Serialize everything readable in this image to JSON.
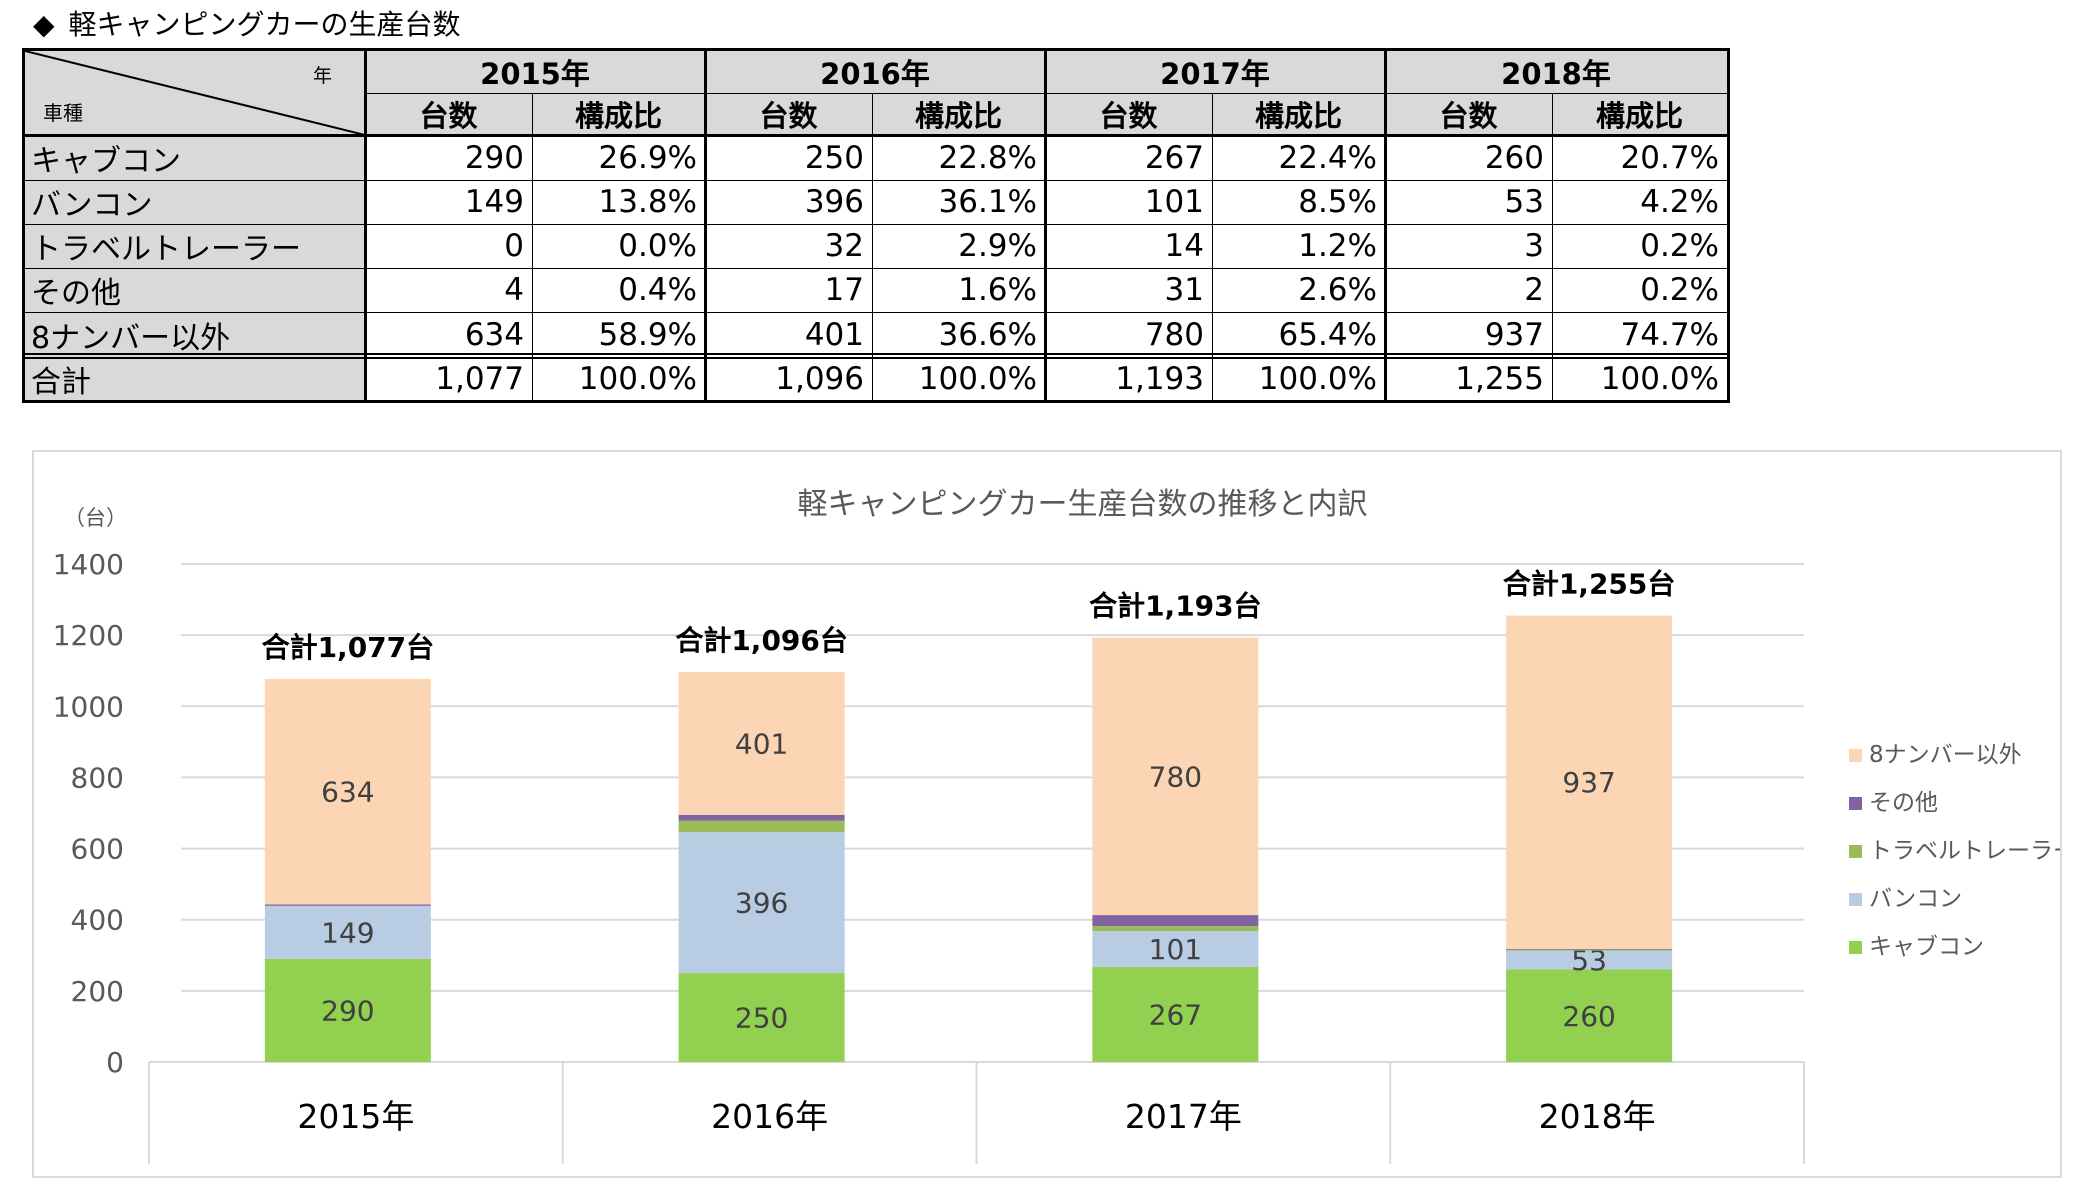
{
  "page_title": "軽キャンピングカーの生産台数",
  "title_marker": "◆",
  "table": {
    "corner_year_label": "年",
    "corner_type_label": "車種",
    "years": [
      "2015年",
      "2016年",
      "2017年",
      "2018年"
    ],
    "subheaders": [
      "台数",
      "構成比"
    ],
    "rows": [
      {
        "label": "キャブコン",
        "cells": [
          "290",
          "26.9%",
          "250",
          "22.8%",
          "267",
          "22.4%",
          "260",
          "20.7%"
        ]
      },
      {
        "label": "バンコン",
        "cells": [
          "149",
          "13.8%",
          "396",
          "36.1%",
          "101",
          "8.5%",
          "53",
          "4.2%"
        ]
      },
      {
        "label": "トラベルトレーラー",
        "cells": [
          "0",
          "0.0%",
          "32",
          "2.9%",
          "14",
          "1.2%",
          "3",
          "0.2%"
        ]
      },
      {
        "label": "その他",
        "cells": [
          "4",
          "0.4%",
          "17",
          "1.6%",
          "31",
          "2.6%",
          "2",
          "0.2%"
        ]
      },
      {
        "label": "8ナンバー以外",
        "cells": [
          "634",
          "58.9%",
          "401",
          "36.6%",
          "780",
          "65.4%",
          "937",
          "74.7%"
        ]
      }
    ],
    "total_row": {
      "label": "合計",
      "cells": [
        "1,077",
        "100.0%",
        "1,096",
        "100.0%",
        "1,193",
        "100.0%",
        "1,255",
        "100.0%"
      ]
    }
  },
  "chart_data": {
    "type": "bar",
    "stacked": true,
    "title": "軽キャンピングカー生産台数の推移と内訳",
    "ylabel": "（台）",
    "ylim": [
      0,
      1400
    ],
    "yticks": [
      0,
      200,
      400,
      600,
      800,
      1000,
      1200,
      1400
    ],
    "categories": [
      "2015年",
      "2016年",
      "2017年",
      "2018年"
    ],
    "series": [
      {
        "name": "キャブコン",
        "color": "#92d050",
        "values": [
          290,
          250,
          267,
          260
        ],
        "labels": [
          "290",
          "250",
          "267",
          "260"
        ]
      },
      {
        "name": "バンコン",
        "color": "#b8cce4",
        "values": [
          149,
          396,
          101,
          53
        ],
        "labels": [
          "149",
          "396",
          "101",
          "53"
        ]
      },
      {
        "name": "トラベルトレーラー",
        "color": "#9bbb59",
        "values": [
          0,
          32,
          14,
          3
        ],
        "labels": [
          "",
          "",
          "",
          ""
        ]
      },
      {
        "name": "その他",
        "color": "#8064a2",
        "values": [
          4,
          17,
          31,
          2
        ],
        "labels": [
          "",
          "",
          "",
          ""
        ]
      },
      {
        "name": "8ナンバー以外",
        "color": "#fcd5b4",
        "values": [
          634,
          401,
          780,
          937
        ],
        "labels": [
          "634",
          "401",
          "780",
          "937"
        ]
      }
    ],
    "totals": [
      "合計1,077台",
      "合計1,096台",
      "合計1,193台",
      "合計1,255台"
    ],
    "total_values": [
      1077,
      1096,
      1193,
      1255
    ],
    "legend_order": [
      "8ナンバー以外",
      "その他",
      "トラベルトレーラー",
      "バンコン",
      "キャブコン"
    ],
    "legend_position": "right",
    "grid": true
  }
}
